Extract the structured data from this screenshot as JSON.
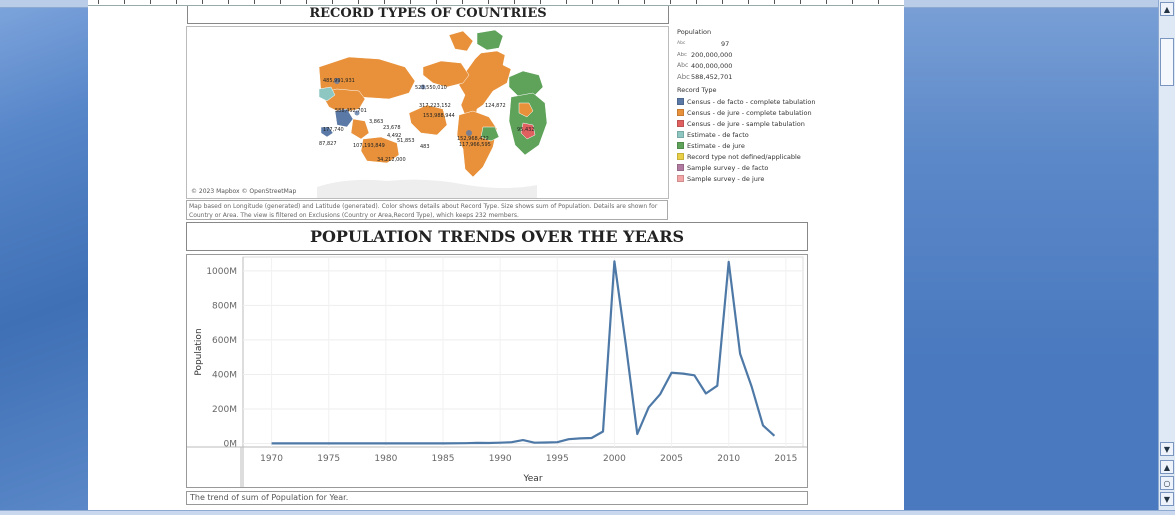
{
  "record_section": {
    "title": "RECORD TYPES OF COUNTRIES",
    "map_credit": "© 2023 Mapbox © OpenStreetMap",
    "caption": "Map based on Longitude (generated) and Latitude (generated). Color shows details about Record Type. Size shows sum of Population. Details are shown for Country or Area. The view is filtered on Exclusions (Country or Area,Record Type), which keeps 232 members.",
    "map_labels": [
      "485,991,931",
      "588,452,701",
      "523,550,010",
      "317,223,152",
      "153,988,944",
      "117,966,595",
      "107,193,849",
      "51,853",
      "34,212,000",
      "23,678",
      "4,492",
      "3,863",
      "177,740",
      "87,827",
      "124,872",
      "152,968,422",
      "95,432",
      "483"
    ],
    "legend": {
      "population_title": "Population",
      "size_abc": "Abc",
      "sizes": [
        "97",
        "200,000,000",
        "400,000,000",
        "588,452,701"
      ],
      "record_type_title": "Record Type",
      "record_types": [
        {
          "label": "Census - de facto - complete tabulation",
          "color": "#5b79a6"
        },
        {
          "label": "Census - de jure - complete tabulation",
          "color": "#e8913a"
        },
        {
          "label": "Census - de jure - sample tabulation",
          "color": "#e06060"
        },
        {
          "label": "Estimate - de facto",
          "color": "#8ec7c2"
        },
        {
          "label": "Estimate - de jure",
          "color": "#5fa35b"
        },
        {
          "label": "Record type not defined/applicable",
          "color": "#e8cf45"
        },
        {
          "label": "Sample survey - de facto",
          "color": "#b07aa1"
        },
        {
          "label": "Sample survey - de jure",
          "color": "#f4a6a6"
        }
      ]
    }
  },
  "population_section": {
    "title": "POPULATION TRENDS OVER THE YEARS",
    "caption": "The trend of sum of Population for Year."
  },
  "chart_data": {
    "type": "line",
    "title": "POPULATION TRENDS OVER THE YEARS",
    "xlabel": "Year",
    "ylabel": "Population",
    "x_ticks": [
      "1970",
      "1975",
      "1980",
      "1985",
      "1990",
      "1995",
      "2000",
      "2005",
      "2010",
      "2015"
    ],
    "y_ticks": [
      "0M",
      "200M",
      "400M",
      "600M",
      "800M",
      "1000M"
    ],
    "xlim": [
      1967.5,
      2016.5
    ],
    "ylim": [
      -20,
      1080
    ],
    "grid": true,
    "color": "#4e79a7",
    "x": [
      1970,
      1975,
      1980,
      1985,
      1987,
      1988,
      1989,
      1990,
      1991,
      1992,
      1993,
      1994,
      1995,
      1996,
      1997,
      1998,
      1999,
      2000,
      2001,
      2002,
      2003,
      2004,
      2005,
      2006,
      2007,
      2008,
      2009,
      2010,
      2011,
      2012,
      2013,
      2014
    ],
    "y": [
      1,
      1,
      1,
      1,
      2,
      4,
      3,
      5,
      8,
      20,
      5,
      6,
      8,
      25,
      30,
      32,
      70,
      1055,
      570,
      55,
      210,
      285,
      410,
      405,
      395,
      290,
      335,
      1052,
      520,
      330,
      105,
      45
    ]
  },
  "window": {
    "scroll_up": "▲",
    "scroll_down": "▼",
    "nav_prev": "▲",
    "nav_select": "○",
    "nav_next": "▼"
  }
}
